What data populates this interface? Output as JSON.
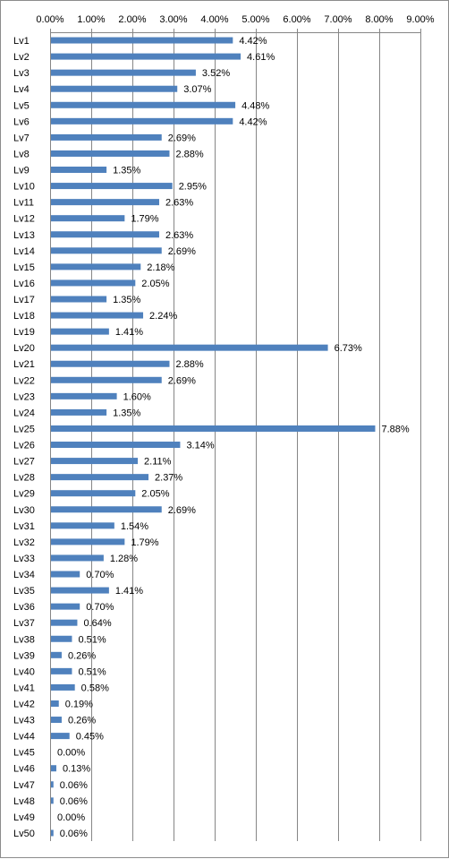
{
  "chart_data": {
    "type": "bar",
    "orientation": "horizontal",
    "xlim": [
      0,
      9
    ],
    "x_tick_values": [
      0,
      1,
      2,
      3,
      4,
      5,
      6,
      7,
      8,
      9
    ],
    "x_tick_labels": [
      "0.00%",
      "1.00%",
      "2.00%",
      "3.00%",
      "4.00%",
      "5.00%",
      "6.00%",
      "7.00%",
      "8.00%",
      "9.00%"
    ],
    "x_axis_position": "top",
    "grid": "vertical",
    "bar_color": "#4F81BD",
    "gridline_color": "#868686",
    "categories": [
      "Lv1",
      "Lv2",
      "Lv3",
      "Lv4",
      "Lv5",
      "Lv6",
      "Lv7",
      "Lv8",
      "Lv9",
      "Lv10",
      "Lv11",
      "Lv12",
      "Lv13",
      "Lv14",
      "Lv15",
      "Lv16",
      "Lv17",
      "Lv18",
      "Lv19",
      "Lv20",
      "Lv21",
      "Lv22",
      "Lv23",
      "Lv24",
      "Lv25",
      "Lv26",
      "Lv27",
      "Lv28",
      "Lv29",
      "Lv30",
      "Lv31",
      "Lv32",
      "Lv33",
      "Lv34",
      "Lv35",
      "Lv36",
      "Lv37",
      "Lv38",
      "Lv39",
      "Lv40",
      "Lv41",
      "Lv42",
      "Lv43",
      "Lv44",
      "Lv45",
      "Lv46",
      "Lv47",
      "Lv48",
      "Lv49",
      "Lv50"
    ],
    "values": [
      4.42,
      4.61,
      3.52,
      3.07,
      4.48,
      4.42,
      2.69,
      2.88,
      1.35,
      2.95,
      2.63,
      1.79,
      2.63,
      2.69,
      2.18,
      2.05,
      1.35,
      2.24,
      1.41,
      6.73,
      2.88,
      2.69,
      1.6,
      1.35,
      7.88,
      3.14,
      2.11,
      2.37,
      2.05,
      2.69,
      1.54,
      1.79,
      1.28,
      0.7,
      1.41,
      0.7,
      0.64,
      0.51,
      0.26,
      0.51,
      0.58,
      0.19,
      0.26,
      0.45,
      0.0,
      0.13,
      0.06,
      0.06,
      0.0,
      0.06
    ],
    "data_labels": [
      "4.42%",
      "4.61%",
      "3.52%",
      "3.07%",
      "4.48%",
      "4.42%",
      "2.69%",
      "2.88%",
      "1.35%",
      "2.95%",
      "2.63%",
      "1.79%",
      "2.63%",
      "2.69%",
      "2.18%",
      "2.05%",
      "1.35%",
      "2.24%",
      "1.41%",
      "6.73%",
      "2.88%",
      "2.69%",
      "1.60%",
      "1.35%",
      "7.88%",
      "3.14%",
      "2.11%",
      "2.37%",
      "2.05%",
      "2.69%",
      "1.54%",
      "1.79%",
      "1.28%",
      "0.70%",
      "1.41%",
      "0.70%",
      "0.64%",
      "0.51%",
      "0.26%",
      "0.51%",
      "0.58%",
      "0.19%",
      "0.26%",
      "0.45%",
      "0.00%",
      "0.13%",
      "0.06%",
      "0.06%",
      "0.00%",
      "0.06%"
    ],
    "title": "",
    "xlabel": "",
    "ylabel": "",
    "legend": "none"
  }
}
